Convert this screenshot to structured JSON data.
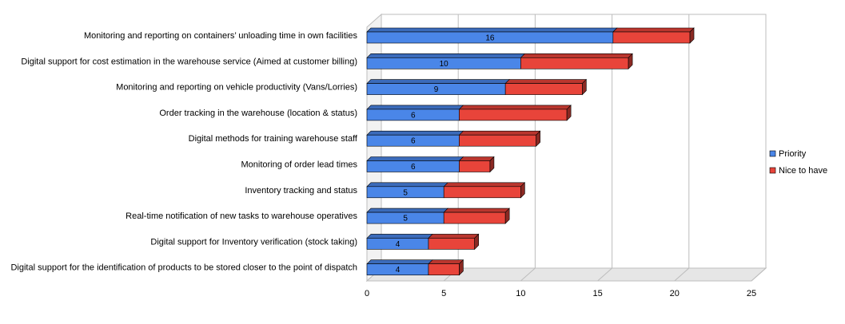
{
  "chart_data": {
    "type": "bar",
    "orientation": "horizontal",
    "stacked": true,
    "three_d": true,
    "categories": [
      "Monitoring and reporting on containers’ unloading time in own facilities",
      "Digital support for cost estimation in the warehouse service (Aimed at customer billing)",
      "Monitoring and reporting on vehicle productivity (Vans/Lorries)",
      "Order tracking in the warehouse (location & status)",
      "Digital methods for training warehouse staff",
      "Monitoring of order lead times",
      "Inventory tracking and status",
      "Real-time notification of new tasks to warehouse operatives",
      "Digital support for Inventory verification (stock taking)",
      "Digital support for the identification of products to be stored closer to the point of dispatch"
    ],
    "series": [
      {
        "name": "Priority",
        "color": "#4a86e8",
        "values": [
          16,
          10,
          9,
          6,
          6,
          6,
          5,
          5,
          4,
          4
        ],
        "show_labels": true
      },
      {
        "name": "Nice to have",
        "color": "#e8443a",
        "values": [
          5,
          7,
          5,
          7,
          5,
          2,
          5,
          4,
          3,
          2
        ],
        "show_labels": false
      }
    ],
    "xlim": [
      0,
      25
    ],
    "xticks": [
      "0",
      "5",
      "10",
      "15",
      "20",
      "25"
    ],
    "grid": true,
    "legend_position": "right",
    "title": "",
    "xlabel": "",
    "ylabel": ""
  }
}
